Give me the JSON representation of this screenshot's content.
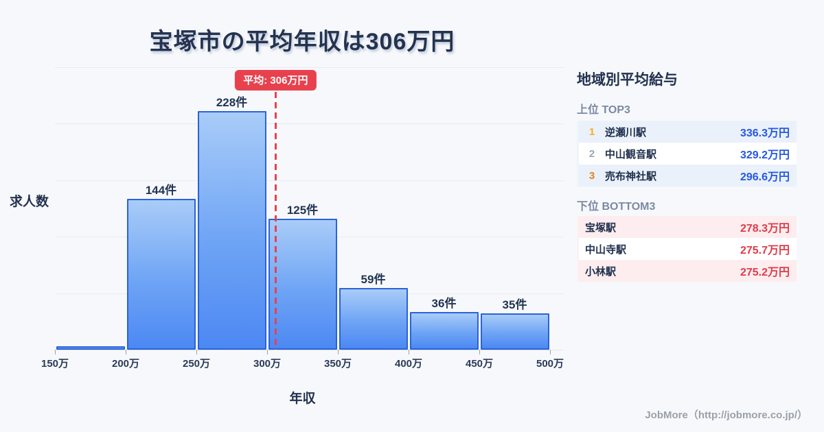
{
  "title": "宝塚市の平均年収は306万円",
  "chart_data": {
    "type": "bar",
    "title": "宝塚市の平均年収は306万円",
    "xlabel": "年収",
    "ylabel": "求人数",
    "x_ticks": [
      "150万",
      "200万",
      "250万",
      "300万",
      "350万",
      "400万",
      "450万",
      "500万"
    ],
    "x_range": [
      150,
      500
    ],
    "ylim": [
      0,
      270
    ],
    "grid": true,
    "legend": "none",
    "bars": [
      {
        "x0": 150,
        "x1": 200,
        "count": 3,
        "label": ""
      },
      {
        "x0": 200,
        "x1": 250,
        "count": 144,
        "label": "144件"
      },
      {
        "x0": 250,
        "x1": 300,
        "count": 228,
        "label": "228件"
      },
      {
        "x0": 300,
        "x1": 350,
        "count": 125,
        "label": "125件"
      },
      {
        "x0": 350,
        "x1": 400,
        "count": 59,
        "label": "59件"
      },
      {
        "x0": 400,
        "x1": 450,
        "count": 36,
        "label": "36件"
      },
      {
        "x0": 450,
        "x1": 500,
        "count": 35,
        "label": "35件"
      }
    ],
    "average_line": {
      "value": 306,
      "label": "平均: 306万円"
    }
  },
  "sidebar": {
    "title": "地域別平均給与",
    "top": {
      "heading": "上位 TOP3",
      "rows": [
        {
          "rank": "1",
          "station": "逆瀬川駅",
          "value": "336.3万円"
        },
        {
          "rank": "2",
          "station": "中山観音駅",
          "value": "329.2万円"
        },
        {
          "rank": "3",
          "station": "売布神社駅",
          "value": "296.6万円"
        }
      ]
    },
    "bottom": {
      "heading": "下位 BOTTOM3",
      "rows": [
        {
          "station": "宝塚駅",
          "value": "278.3万円"
        },
        {
          "station": "中山寺駅",
          "value": "275.7万円"
        },
        {
          "station": "小林駅",
          "value": "275.2万円"
        }
      ]
    }
  },
  "footer": {
    "credit": "JobMore（http://jobmore.co.jp/）"
  },
  "colors": {
    "background": "#f7f8fb",
    "title_navy": "#24334f",
    "bar_fill_top": "#a9ccf8",
    "bar_fill_bottom": "#4c88f3",
    "bar_border": "#2a63d8",
    "grid_line": "#e8ebf2",
    "average_red": "#e8414e",
    "top_value_blue": "#2457e6",
    "bottom_value_red": "#e03b47",
    "row_blue_bg": "#eaf1fb",
    "row_pink_bg": "#fdedef",
    "rank1_gold": "#f2b01e",
    "rank2_gray": "#9aa5b4",
    "rank3_orange": "#e5821e",
    "footer_gray": "#9aa0aa"
  }
}
